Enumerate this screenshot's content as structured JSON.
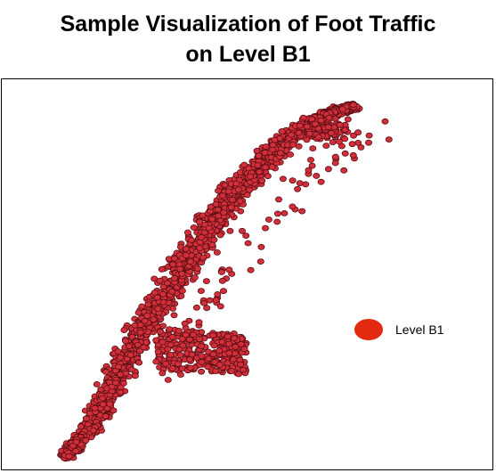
{
  "header": {
    "title_line1": "Sample Visualization of Foot Traffic",
    "title_line2": "on Level B1"
  },
  "legend": {
    "label": "Level B1",
    "placement": "right",
    "marker_color": "#e12a0f"
  },
  "chart_data": {
    "type": "scatter",
    "title": "Sample Visualization of Foot Traffic on Level B1",
    "xlabel": "",
    "ylabel": "",
    "axes_visible": false,
    "grid": false,
    "legend_placement": "right",
    "series": [
      {
        "name": "Level B1",
        "marker_color": "#d32f3b",
        "marker_edge_color": "#5a0f14",
        "note_points_generated": true
      }
    ]
  }
}
